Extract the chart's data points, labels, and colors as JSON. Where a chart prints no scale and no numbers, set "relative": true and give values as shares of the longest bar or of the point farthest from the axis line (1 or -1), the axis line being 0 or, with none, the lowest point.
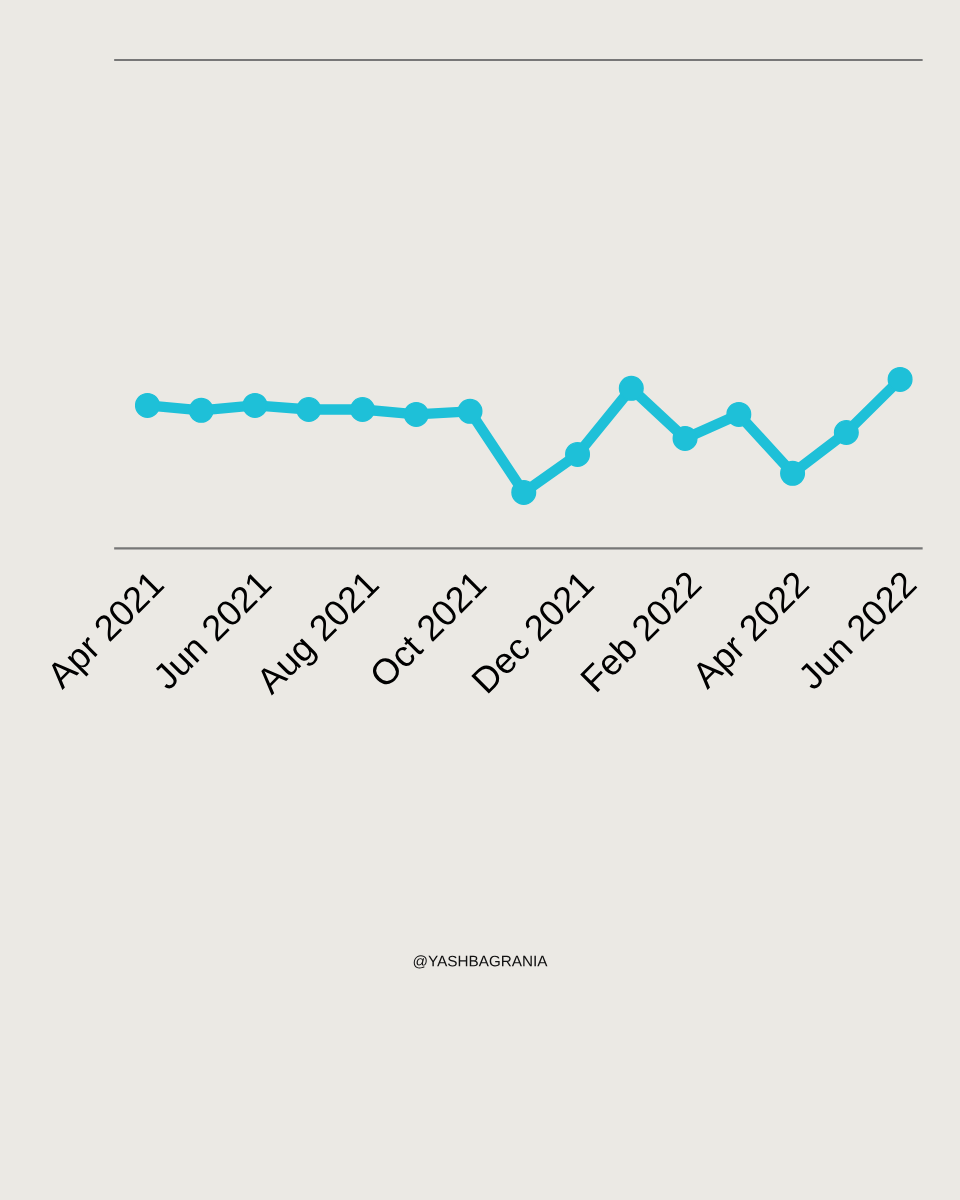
{
  "chart_data": {
    "type": "line",
    "relative": true,
    "categories": [
      "Apr 2021",
      null,
      "Jun 2021",
      null,
      "Aug 2021",
      null,
      "Oct 2021",
      null,
      "Dec 2021",
      null,
      "Feb 2022",
      null,
      "Apr 2022",
      null,
      "Jun 2022"
    ],
    "series": [
      {
        "color": "#1ec0d8",
        "values": [
          0.846,
          0.817,
          0.846,
          0.822,
          0.822,
          0.793,
          0.811,
          0.331,
          0.556,
          0.947,
          0.651,
          0.793,
          0.444,
          0.686,
          1
        ]
      }
    ],
    "marker": "circle",
    "line_style": "solid",
    "grid": false,
    "tick_labels": "x",
    "annotations": [
      "@YASHBAGRANIA"
    ]
  }
}
